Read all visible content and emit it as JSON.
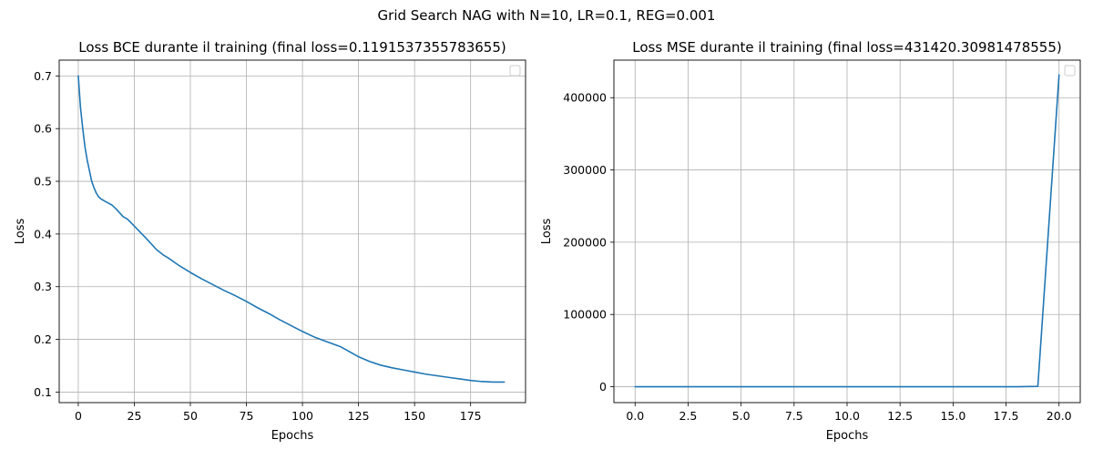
{
  "figure": {
    "suptitle": "Grid Search NAG with N=10, LR=0.1, REG=0.001"
  },
  "chart_data": [
    {
      "type": "line",
      "title": "Loss BCE durante il training (final loss=0.1191537355783655)",
      "xlabel": "Epochs",
      "ylabel": "Loss",
      "xlim": [
        -8.5,
        199.5
      ],
      "ylim": [
        0.08,
        0.73
      ],
      "xticks": [
        0,
        25,
        50,
        75,
        100,
        125,
        150,
        175
      ],
      "xtick_labels": [
        "0",
        "25",
        "50",
        "75",
        "100",
        "125",
        "150",
        "175"
      ],
      "yticks": [
        0.1,
        0.2,
        0.3,
        0.4,
        0.5,
        0.6,
        0.7
      ],
      "ytick_labels": [
        "0.1",
        "0.2",
        "0.3",
        "0.4",
        "0.5",
        "0.6",
        "0.7"
      ],
      "grid": true,
      "legend": "upper right (empty)",
      "color": "#1f77b4",
      "series": [
        {
          "x": [
            0,
            1,
            2,
            3,
            4,
            5,
            6,
            7,
            8,
            9,
            10,
            12,
            15,
            17,
            20,
            22,
            25,
            30,
            35,
            38,
            40,
            45,
            50,
            55,
            60,
            65,
            70,
            75,
            80,
            85,
            90,
            95,
            100,
            105,
            110,
            117,
            120,
            125,
            130,
            135,
            140,
            145,
            150,
            155,
            160,
            165,
            170,
            175,
            180,
            185,
            190
          ],
          "y": [
            0.7,
            0.64,
            0.6,
            0.565,
            0.54,
            0.52,
            0.5,
            0.488,
            0.478,
            0.471,
            0.467,
            0.462,
            0.455,
            0.447,
            0.433,
            0.428,
            0.415,
            0.393,
            0.37,
            0.36,
            0.355,
            0.34,
            0.327,
            0.315,
            0.304,
            0.293,
            0.283,
            0.272,
            0.26,
            0.249,
            0.237,
            0.226,
            0.215,
            0.205,
            0.197,
            0.186,
            0.179,
            0.167,
            0.158,
            0.151,
            0.146,
            0.142,
            0.138,
            0.134,
            0.131,
            0.128,
            0.125,
            0.122,
            0.12,
            0.119,
            0.119
          ]
        }
      ]
    },
    {
      "type": "line",
      "title": "Loss MSE durante il training (final loss=431420.30981478555)",
      "xlabel": "Epochs",
      "ylabel": "Loss",
      "xlim": [
        -1.0,
        21.0
      ],
      "ylim": [
        -22000,
        452000
      ],
      "xticks": [
        0,
        2.5,
        5,
        7.5,
        10,
        12.5,
        15,
        17.5,
        20
      ],
      "xtick_labels": [
        "0.0",
        "2.5",
        "5.0",
        "7.5",
        "10.0",
        "12.5",
        "15.0",
        "17.5",
        "20.0"
      ],
      "yticks": [
        0,
        100000,
        200000,
        300000,
        400000
      ],
      "ytick_labels": [
        "0",
        "100000",
        "200000",
        "300000",
        "400000"
      ],
      "grid": true,
      "legend": "upper right (empty)",
      "color": "#1f77b4",
      "series": [
        {
          "x": [
            0,
            1,
            2,
            3,
            4,
            5,
            6,
            7,
            8,
            9,
            10,
            11,
            12,
            13,
            14,
            15,
            16,
            17,
            18,
            19,
            20
          ],
          "y": [
            0,
            0,
            0,
            0,
            0,
            0,
            0,
            0,
            0,
            0,
            0,
            0,
            0,
            0,
            0,
            0,
            0,
            0,
            0,
            500,
            431420.30981478555
          ]
        }
      ]
    }
  ]
}
